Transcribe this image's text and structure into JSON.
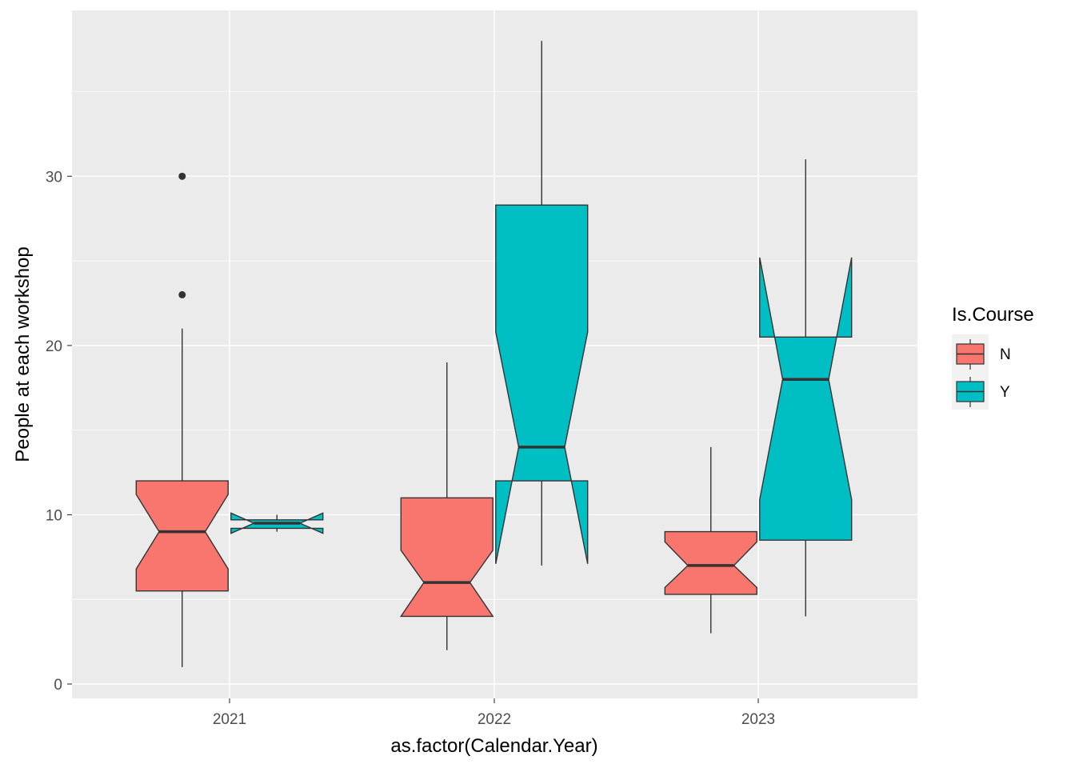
{
  "chart_data": {
    "type": "boxplot",
    "notched": true,
    "title": "",
    "xlabel": "as.factor(Calendar.Year)",
    "ylabel": "People at each workshop",
    "categories": [
      "2021",
      "2022",
      "2023"
    ],
    "ylim": [
      -0.85,
      39.8
    ],
    "y_ticks": [
      0,
      10,
      20,
      30
    ],
    "y_tick_labels": [
      "0",
      "10",
      "20",
      "30"
    ],
    "grid": true,
    "legend": {
      "title": "Is.Course",
      "position": "right",
      "entries": [
        {
          "key": "N",
          "label": "N",
          "color": "#F8766D"
        },
        {
          "key": "Y",
          "label": "Y",
          "color": "#00BFC4"
        }
      ]
    },
    "series": [
      {
        "key": "N",
        "color": "#F8766D",
        "boxes": [
          {
            "category": "2021",
            "lower_whisker": 1,
            "q1": 5.5,
            "median": 9,
            "q3": 12,
            "upper_whisker": 21,
            "notch_lower": 6.8,
            "notch_upper": 11.2,
            "outliers": [
              23,
              30
            ]
          },
          {
            "category": "2022",
            "lower_whisker": 2,
            "q1": 4,
            "median": 6,
            "q3": 11,
            "upper_whisker": 19,
            "notch_lower": 4,
            "notch_upper": 7.9,
            "outliers": []
          },
          {
            "category": "2023",
            "lower_whisker": 3,
            "q1": 5.3,
            "median": 7,
            "q3": 9,
            "upper_whisker": 14,
            "notch_lower": 5.7,
            "notch_upper": 8.4,
            "outliers": []
          }
        ]
      },
      {
        "key": "Y",
        "color": "#00BFC4",
        "boxes": [
          {
            "category": "2021",
            "lower_whisker": 9,
            "q1": 9.2,
            "median": 9.5,
            "q3": 9.7,
            "upper_whisker": 10,
            "notch_lower": 8.9,
            "notch_upper": 10.1,
            "outliers": []
          },
          {
            "category": "2022",
            "lower_whisker": 7,
            "q1": 12,
            "median": 14,
            "q3": 28.3,
            "upper_whisker": 38,
            "notch_lower": 7.1,
            "notch_upper": 20.8,
            "outliers": []
          },
          {
            "category": "2023",
            "lower_whisker": 4,
            "q1": 8.5,
            "median": 18,
            "q3": 20.5,
            "upper_whisker": 31,
            "notch_lower": 10.9,
            "notch_upper": 25.2,
            "outliers": []
          }
        ]
      }
    ]
  }
}
